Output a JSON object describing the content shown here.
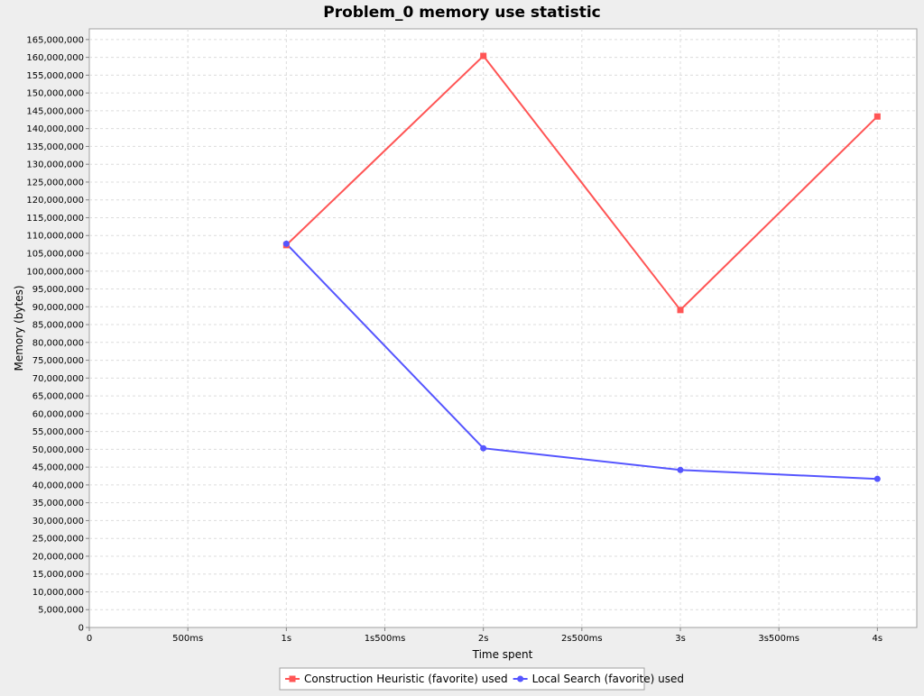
{
  "chart_data": {
    "type": "line",
    "title": "Problem_0 memory use statistic",
    "xlabel": "Time spent",
    "ylabel": "Memory (bytes)",
    "x_unit": "ms",
    "xlim": [
      0,
      4200
    ],
    "ylim": [
      0,
      168000000
    ],
    "x_ticks": [
      {
        "value": 0,
        "label": "0"
      },
      {
        "value": 500,
        "label": "500ms"
      },
      {
        "value": 1000,
        "label": "1s"
      },
      {
        "value": 1500,
        "label": "1s500ms"
      },
      {
        "value": 2000,
        "label": "2s"
      },
      {
        "value": 2500,
        "label": "2s500ms"
      },
      {
        "value": 3000,
        "label": "3s"
      },
      {
        "value": 3500,
        "label": "3s500ms"
      },
      {
        "value": 4000,
        "label": "4s"
      }
    ],
    "y_ticks": [
      {
        "value": 0,
        "label": "0"
      },
      {
        "value": 5000000,
        "label": "5,000,000"
      },
      {
        "value": 10000000,
        "label": "10,000,000"
      },
      {
        "value": 15000000,
        "label": "15,000,000"
      },
      {
        "value": 20000000,
        "label": "20,000,000"
      },
      {
        "value": 25000000,
        "label": "25,000,000"
      },
      {
        "value": 30000000,
        "label": "30,000,000"
      },
      {
        "value": 35000000,
        "label": "35,000,000"
      },
      {
        "value": 40000000,
        "label": "40,000,000"
      },
      {
        "value": 45000000,
        "label": "45,000,000"
      },
      {
        "value": 50000000,
        "label": "50,000,000"
      },
      {
        "value": 55000000,
        "label": "55,000,000"
      },
      {
        "value": 60000000,
        "label": "60,000,000"
      },
      {
        "value": 65000000,
        "label": "65,000,000"
      },
      {
        "value": 70000000,
        "label": "70,000,000"
      },
      {
        "value": 75000000,
        "label": "75,000,000"
      },
      {
        "value": 80000000,
        "label": "80,000,000"
      },
      {
        "value": 85000000,
        "label": "85,000,000"
      },
      {
        "value": 90000000,
        "label": "90,000,000"
      },
      {
        "value": 95000000,
        "label": "95,000,000"
      },
      {
        "value": 100000000,
        "label": "100,000,000"
      },
      {
        "value": 105000000,
        "label": "105,000,000"
      },
      {
        "value": 110000000,
        "label": "110,000,000"
      },
      {
        "value": 115000000,
        "label": "115,000,000"
      },
      {
        "value": 120000000,
        "label": "120,000,000"
      },
      {
        "value": 125000000,
        "label": "125,000,000"
      },
      {
        "value": 130000000,
        "label": "130,000,000"
      },
      {
        "value": 135000000,
        "label": "135,000,000"
      },
      {
        "value": 140000000,
        "label": "140,000,000"
      },
      {
        "value": 145000000,
        "label": "145,000,000"
      },
      {
        "value": 150000000,
        "label": "150,000,000"
      },
      {
        "value": 155000000,
        "label": "155,000,000"
      },
      {
        "value": 160000000,
        "label": "160,000,000"
      },
      {
        "value": 165000000,
        "label": "165,000,000"
      }
    ],
    "grid": true,
    "legend_position": "bottom",
    "series": [
      {
        "name": "Construction Heuristic (favorite) used",
        "color": "#ff5555",
        "marker": "square",
        "points": [
          {
            "x": 1000,
            "y": 107300000
          },
          {
            "x": 2000,
            "y": 160400000
          },
          {
            "x": 3000,
            "y": 89100000
          },
          {
            "x": 4000,
            "y": 143400000
          }
        ]
      },
      {
        "name": "Local Search (favorite) used",
        "color": "#5555ff",
        "marker": "circle",
        "points": [
          {
            "x": 1000,
            "y": 107700000
          },
          {
            "x": 2000,
            "y": 50300000
          },
          {
            "x": 3000,
            "y": 44200000
          },
          {
            "x": 4000,
            "y": 41700000
          }
        ]
      }
    ]
  }
}
